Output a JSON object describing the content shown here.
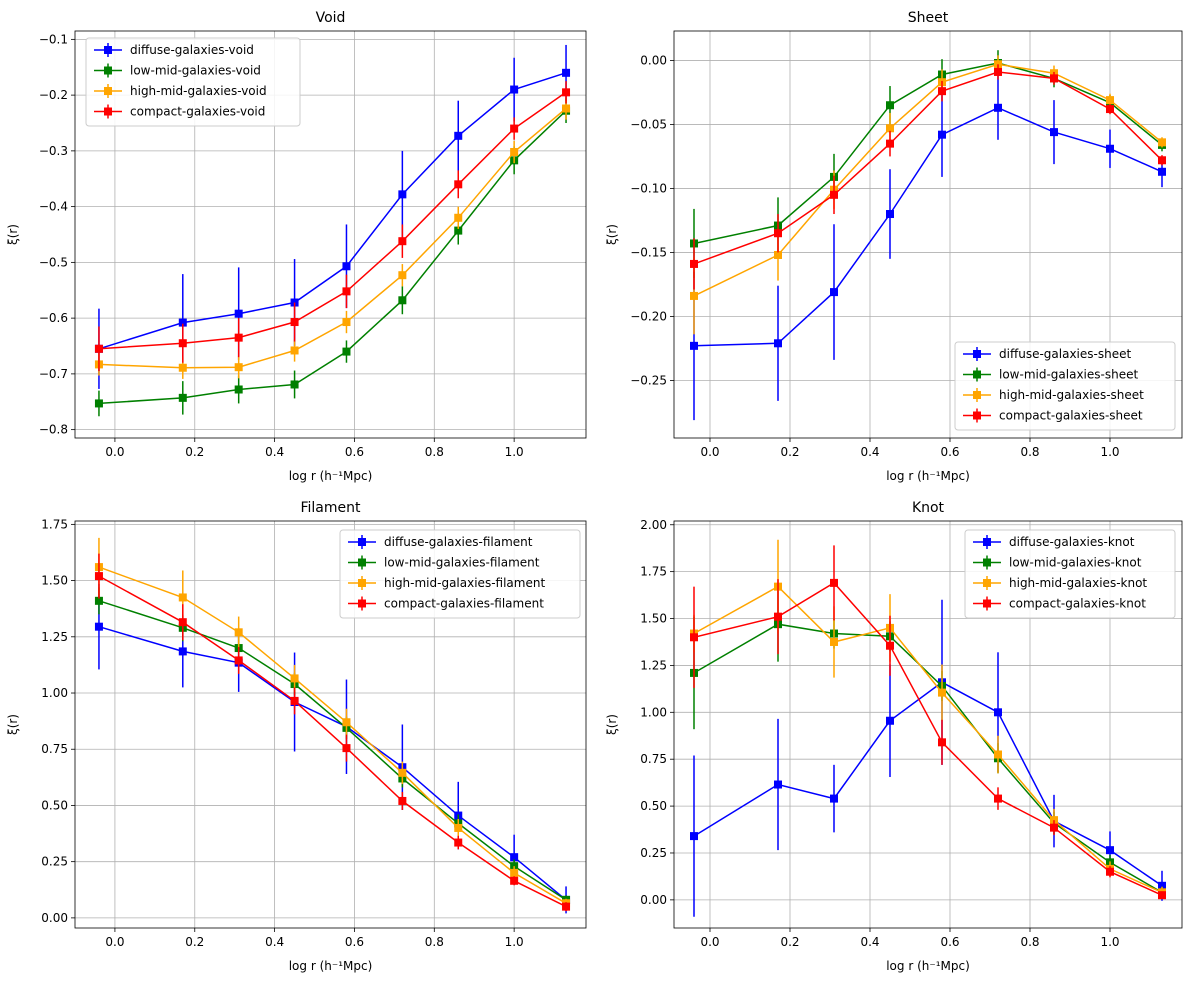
{
  "chart_data": [
    {
      "type": "line",
      "panel": "void",
      "title": "Void",
      "xlabel": "log r (h⁻¹Mpc)",
      "ylabel": "ξ(r)",
      "xlim": [
        -0.1,
        1.18
      ],
      "ylim": [
        -0.815,
        -0.085
      ],
      "xticks": [
        0.0,
        0.2,
        0.4,
        0.6,
        0.8,
        1.0
      ],
      "xticklabels": [
        "0.0",
        "0.2",
        "0.4",
        "0.6",
        "0.8",
        "1.0"
      ],
      "yticks": [
        -0.8,
        -0.7,
        -0.6,
        -0.5,
        -0.4,
        -0.3,
        -0.2,
        -0.1
      ],
      "yticklabels": [
        "−0.8",
        "−0.7",
        "−0.6",
        "−0.5",
        "−0.4",
        "−0.3",
        "−0.2",
        "−0.1"
      ],
      "legend_loc": "upper-left",
      "grid": true,
      "x": [
        -0.04,
        0.17,
        0.31,
        0.45,
        0.58,
        0.72,
        0.86,
        1.0,
        1.13
      ],
      "series": [
        {
          "name": "diffuse-galaxies-void",
          "color": "#0000ff",
          "values": [
            -0.655,
            -0.608,
            -0.592,
            -0.572,
            -0.507,
            -0.378,
            -0.273,
            -0.19,
            -0.16
          ],
          "errors": [
            0.072,
            0.087,
            0.083,
            0.078,
            0.075,
            0.078,
            0.063,
            0.057,
            0.05
          ]
        },
        {
          "name": "low-mid-galaxies-void",
          "color": "#008000",
          "values": [
            -0.753,
            -0.743,
            -0.728,
            -0.719,
            -0.66,
            -0.568,
            -0.443,
            -0.317,
            -0.228
          ],
          "errors": [
            0.023,
            0.03,
            0.025,
            0.025,
            0.02,
            0.025,
            0.025,
            0.025,
            0.022
          ]
        },
        {
          "name": "high-mid-galaxies-void",
          "color": "#ffa500",
          "values": [
            -0.683,
            -0.689,
            -0.688,
            -0.658,
            -0.607,
            -0.523,
            -0.42,
            -0.302,
            -0.224
          ],
          "errors": [
            0.02,
            0.02,
            0.02,
            0.02,
            0.02,
            0.02,
            0.02,
            0.02,
            0.02
          ]
        },
        {
          "name": "compact-galaxies-void",
          "color": "#ff0000",
          "values": [
            -0.655,
            -0.645,
            -0.635,
            -0.607,
            -0.552,
            -0.462,
            -0.36,
            -0.26,
            -0.195
          ],
          "errors": [
            0.04,
            0.035,
            0.035,
            0.035,
            0.03,
            0.03,
            0.025,
            0.02,
            0.02
          ]
        }
      ]
    },
    {
      "type": "line",
      "panel": "sheet",
      "title": "Sheet",
      "xlabel": "log r (h⁻¹Mpc)",
      "ylabel": "ξ(r)",
      "xlim": [
        -0.09,
        1.18
      ],
      "ylim": [
        -0.295,
        0.023
      ],
      "xticks": [
        0.0,
        0.2,
        0.4,
        0.6,
        0.8,
        1.0
      ],
      "xticklabels": [
        "0.0",
        "0.2",
        "0.4",
        "0.6",
        "0.8",
        "1.0"
      ],
      "yticks": [
        -0.25,
        -0.2,
        -0.15,
        -0.1,
        -0.05,
        0.0
      ],
      "yticklabels": [
        "−0.25",
        "−0.20",
        "−0.15",
        "−0.10",
        "−0.05",
        "0.00"
      ],
      "legend_loc": "lower-right",
      "grid": true,
      "x": [
        -0.04,
        0.17,
        0.31,
        0.45,
        0.58,
        0.72,
        0.86,
        1.0,
        1.13
      ],
      "series": [
        {
          "name": "diffuse-galaxies-sheet",
          "color": "#0000ff",
          "values": [
            -0.223,
            -0.221,
            -0.181,
            -0.12,
            -0.058,
            -0.037,
            -0.056,
            -0.069,
            -0.087
          ],
          "errors": [
            0.058,
            0.045,
            0.053,
            0.035,
            0.033,
            0.025,
            0.025,
            0.015,
            0.012
          ]
        },
        {
          "name": "low-mid-galaxies-sheet",
          "color": "#008000",
          "values": [
            -0.143,
            -0.129,
            -0.091,
            -0.035,
            -0.011,
            -0.002,
            -0.014,
            -0.033,
            -0.066
          ],
          "errors": [
            0.027,
            0.022,
            0.018,
            0.015,
            0.012,
            0.01,
            0.007,
            0.006,
            0.005
          ]
        },
        {
          "name": "high-mid-galaxies-sheet",
          "color": "#ffa500",
          "values": [
            -0.184,
            -0.152,
            -0.101,
            -0.053,
            -0.017,
            -0.003,
            -0.01,
            -0.031,
            -0.064
          ],
          "errors": [
            0.03,
            0.02,
            0.015,
            0.012,
            0.01,
            0.007,
            0.006,
            0.005,
            0.004
          ]
        },
        {
          "name": "compact-galaxies-sheet",
          "color": "#ff0000",
          "values": [
            -0.159,
            -0.135,
            -0.105,
            -0.065,
            -0.024,
            -0.009,
            -0.014,
            -0.038,
            -0.078
          ],
          "errors": [
            0.02,
            0.015,
            0.015,
            0.01,
            0.008,
            0.006,
            0.005,
            0.004,
            0.004
          ]
        }
      ]
    },
    {
      "type": "line",
      "panel": "filament",
      "title": "Filament",
      "xlabel": "log r (h⁻¹Mpc)",
      "ylabel": "ξ(r)",
      "xlim": [
        -0.1,
        1.18
      ],
      "ylim": [
        -0.045,
        1.765
      ],
      "xticks": [
        0.0,
        0.2,
        0.4,
        0.6,
        0.8,
        1.0
      ],
      "xticklabels": [
        "0.0",
        "0.2",
        "0.4",
        "0.6",
        "0.8",
        "1.0"
      ],
      "yticks": [
        0.0,
        0.25,
        0.5,
        0.75,
        1.0,
        1.25,
        1.5,
        1.75
      ],
      "yticklabels": [
        "0.00",
        "0.25",
        "0.50",
        "0.75",
        "1.00",
        "1.25",
        "1.50",
        "1.75"
      ],
      "legend_loc": "upper-right",
      "grid": true,
      "x": [
        -0.04,
        0.17,
        0.31,
        0.45,
        0.58,
        0.72,
        0.86,
        1.0,
        1.13
      ],
      "series": [
        {
          "name": "diffuse-galaxies-filament",
          "color": "#0000ff",
          "values": [
            1.295,
            1.185,
            1.135,
            0.96,
            0.85,
            0.67,
            0.455,
            0.27,
            0.08
          ],
          "errors": [
            0.19,
            0.16,
            0.13,
            0.22,
            0.21,
            0.19,
            0.15,
            0.1,
            0.06
          ]
        },
        {
          "name": "low-mid-galaxies-filament",
          "color": "#008000",
          "values": [
            1.41,
            1.29,
            1.2,
            1.04,
            0.845,
            0.62,
            0.42,
            0.23,
            0.08
          ],
          "errors": [
            0.06,
            0.06,
            0.05,
            0.05,
            0.05,
            0.04,
            0.04,
            0.03,
            0.02
          ]
        },
        {
          "name": "high-mid-galaxies-filament",
          "color": "#ffa500",
          "values": [
            1.56,
            1.425,
            1.27,
            1.065,
            0.87,
            0.645,
            0.4,
            0.2,
            0.065
          ],
          "errors": [
            0.13,
            0.12,
            0.07,
            0.06,
            0.06,
            0.05,
            0.04,
            0.03,
            0.02
          ]
        },
        {
          "name": "compact-galaxies-filament",
          "color": "#ff0000",
          "values": [
            1.52,
            1.315,
            1.145,
            0.965,
            0.755,
            0.52,
            0.335,
            0.165,
            0.05
          ],
          "errors": [
            0.1,
            0.08,
            0.06,
            0.06,
            0.06,
            0.04,
            0.03,
            0.02,
            0.02
          ]
        }
      ]
    },
    {
      "type": "line",
      "panel": "knot",
      "title": "Knot",
      "xlabel": "log r (h⁻¹Mpc)",
      "ylabel": "ξ(r)",
      "xlim": [
        -0.09,
        1.18
      ],
      "ylim": [
        -0.15,
        2.02
      ],
      "xticks": [
        0.0,
        0.2,
        0.4,
        0.6,
        0.8,
        1.0
      ],
      "xticklabels": [
        "0.0",
        "0.2",
        "0.4",
        "0.6",
        "0.8",
        "1.0"
      ],
      "yticks": [
        0.0,
        0.25,
        0.5,
        0.75,
        1.0,
        1.25,
        1.5,
        1.75,
        2.0
      ],
      "yticklabels": [
        "0.00",
        "0.25",
        "0.50",
        "0.75",
        "1.00",
        "1.25",
        "1.50",
        "1.75",
        "2.00"
      ],
      "legend_loc": "upper-right",
      "grid": true,
      "x": [
        -0.04,
        0.17,
        0.31,
        0.45,
        0.58,
        0.72,
        0.86,
        1.0,
        1.13
      ],
      "series": [
        {
          "name": "diffuse-galaxies-knot",
          "color": "#0000ff",
          "values": [
            0.34,
            0.615,
            0.54,
            0.955,
            1.16,
            1.0,
            0.42,
            0.265,
            0.075
          ],
          "errors": [
            0.43,
            0.35,
            0.18,
            0.3,
            0.44,
            0.32,
            0.14,
            0.1,
            0.08
          ]
        },
        {
          "name": "low-mid-galaxies-knot",
          "color": "#008000",
          "values": [
            1.21,
            1.47,
            1.42,
            1.405,
            1.14,
            0.755,
            0.41,
            0.2,
            0.04
          ],
          "errors": [
            0.3,
            0.2,
            0.08,
            0.08,
            0.08,
            0.08,
            0.06,
            0.04,
            0.03
          ]
        },
        {
          "name": "high-mid-galaxies-knot",
          "color": "#ffa500",
          "values": [
            1.42,
            1.67,
            1.375,
            1.45,
            1.105,
            0.775,
            0.425,
            0.165,
            0.04
          ],
          "errors": [
            0.1,
            0.25,
            0.19,
            0.18,
            0.15,
            0.1,
            0.06,
            0.04,
            0.03
          ]
        },
        {
          "name": "compact-galaxies-knot",
          "color": "#ff0000",
          "values": [
            1.4,
            1.51,
            1.69,
            1.355,
            0.84,
            0.54,
            0.385,
            0.15,
            0.025
          ],
          "errors": [
            0.27,
            0.2,
            0.2,
            0.16,
            0.12,
            0.06,
            0.04,
            0.03,
            0.02
          ]
        }
      ]
    }
  ]
}
